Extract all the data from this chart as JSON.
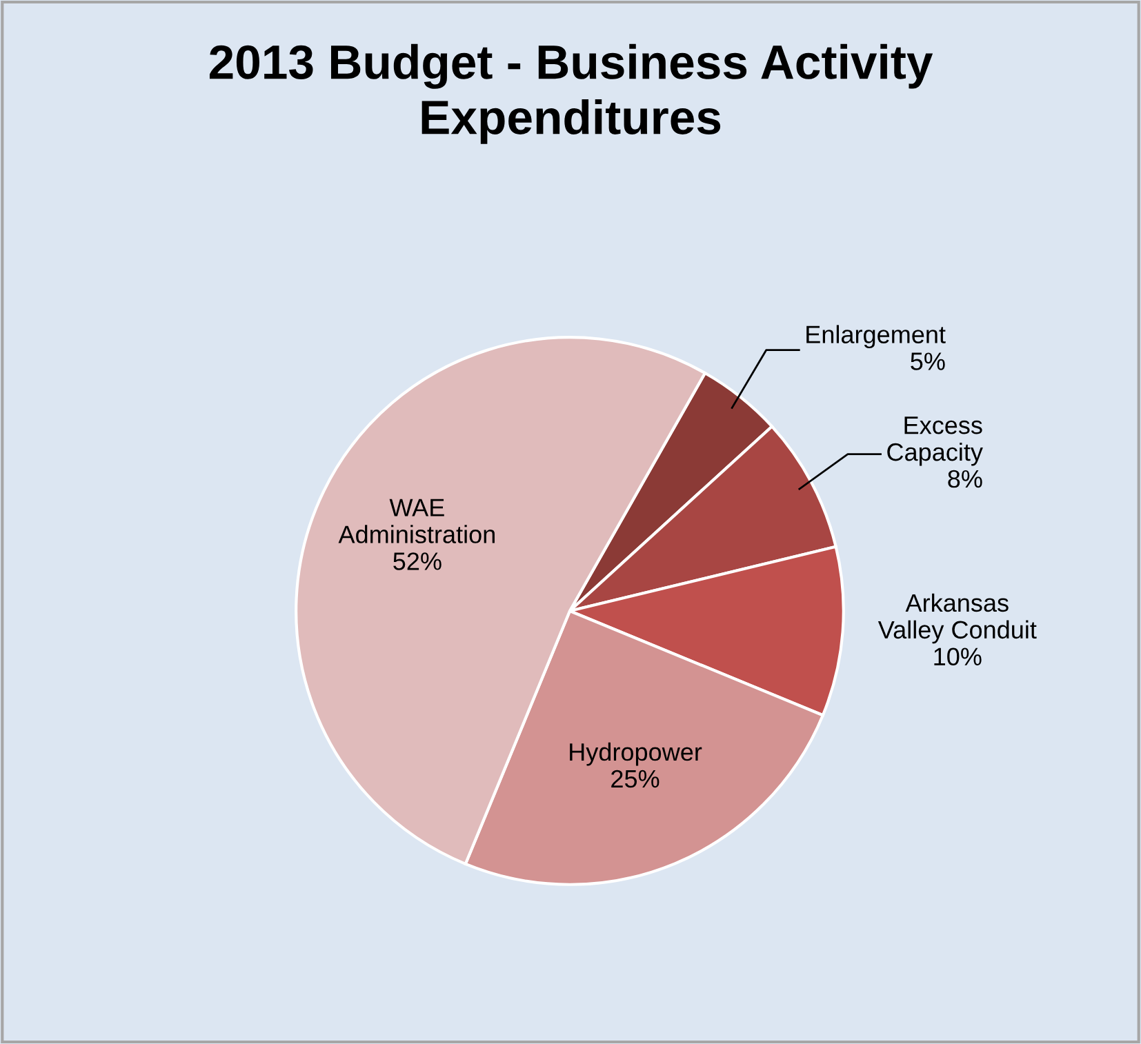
{
  "chart_data": {
    "type": "pie",
    "title": "2013 Budget - Business Activity Expenditures",
    "categories": [
      "Enlargement",
      "Excess Capacity",
      "Arkansas Valley Conduit",
      "Hydropower",
      "WAE Administration"
    ],
    "values": [
      5,
      8,
      10,
      25,
      52
    ],
    "colors": [
      "#8b3a36",
      "#a84643",
      "#c0504d",
      "#d39392",
      "#e0bbbb"
    ],
    "value_labels": [
      "5%",
      "8%",
      "10%",
      "25%",
      "52%"
    ],
    "legend": false
  }
}
